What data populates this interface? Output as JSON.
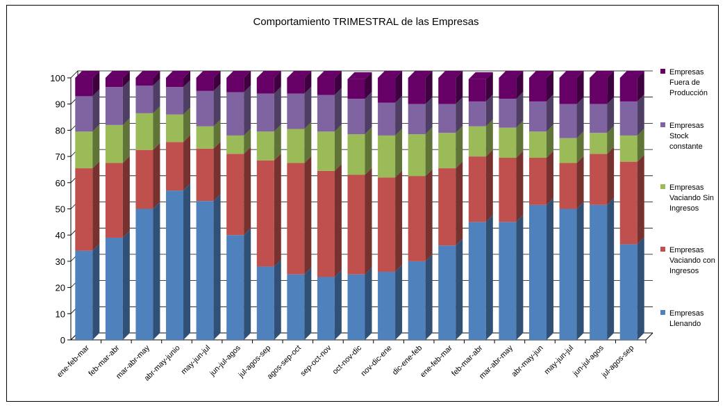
{
  "chart_data": {
    "type": "bar",
    "stacked": true,
    "three_d": true,
    "title": "Comportamiento TRIMESTRAL de las Empresas",
    "xlabel": "",
    "ylabel": "",
    "ylim": [
      0,
      100
    ],
    "yticks": [
      0,
      10,
      20,
      30,
      40,
      50,
      60,
      70,
      80,
      90,
      100
    ],
    "grid": true,
    "legend_position": "right",
    "categories": [
      "ene-feb-mar",
      "feb-mar-abr",
      "mar-abr-may",
      "abr-may-junio",
      "may-jun-jul",
      "jun-jul-agos",
      "jul-agos-sep",
      "agos-sep-oct",
      "sep-oct-nov",
      "oct-nov-dic",
      "nov-dic-ene",
      "dic-ene-feb",
      "ene-feb-mar",
      "feb-mar-abr",
      "mar-abr-may",
      "abr-may-jun",
      "may-jun-jul",
      "jun-jul-agos",
      "jul-agos-sep"
    ],
    "series": [
      {
        "name": "Empresas Llenando",
        "color": "#4F81BD",
        "values": [
          34,
          39,
          50,
          57,
          53,
          40,
          28,
          25,
          24,
          25,
          26,
          30,
          36,
          45,
          45,
          51.5,
          50,
          51.5,
          36.5
        ]
      },
      {
        "name": "Empresas Vaciando con Ingresos",
        "color": "#C0504D",
        "values": [
          31.5,
          28.5,
          22.5,
          18.5,
          20,
          31,
          40.5,
          42.5,
          40.5,
          38,
          36,
          32.5,
          29.5,
          25,
          24.5,
          18,
          17.5,
          19.5,
          31.5
        ]
      },
      {
        "name": "Empresas Vaciando Sin Ingresos",
        "color": "#9BBB59",
        "values": [
          14,
          14.5,
          14,
          10.5,
          8.5,
          7,
          11,
          13,
          15,
          15.5,
          16,
          16,
          13.5,
          11.5,
          11.5,
          10,
          9.5,
          8,
          10
        ]
      },
      {
        "name": "Empresas Stock constante",
        "color": "#8064A2",
        "values": [
          13.5,
          14.5,
          10.5,
          10.5,
          13.5,
          16.5,
          14.5,
          13.5,
          14,
          13.5,
          12.5,
          11.5,
          11,
          9.5,
          11,
          11.5,
          13,
          11,
          13
        ]
      },
      {
        "name": "Empresas Fuera de Producción",
        "color": "#660066",
        "values": [
          7,
          3.5,
          3,
          3.5,
          5,
          5.5,
          6,
          6,
          6.5,
          7.5,
          9.5,
          10,
          10,
          8.5,
          8,
          9,
          10,
          10,
          9
        ]
      }
    ],
    "legend_labels": [
      [
        "Empresas",
        "Fuera de",
        "Producción"
      ],
      [
        "Empresas",
        "Stock",
        "constante"
      ],
      [
        "Empresas",
        "Vaciando Sin",
        "Ingresos"
      ],
      [
        "Empresas",
        "Vaciando con",
        "Ingresos"
      ],
      [
        "Empresas",
        "Llenando"
      ]
    ]
  }
}
